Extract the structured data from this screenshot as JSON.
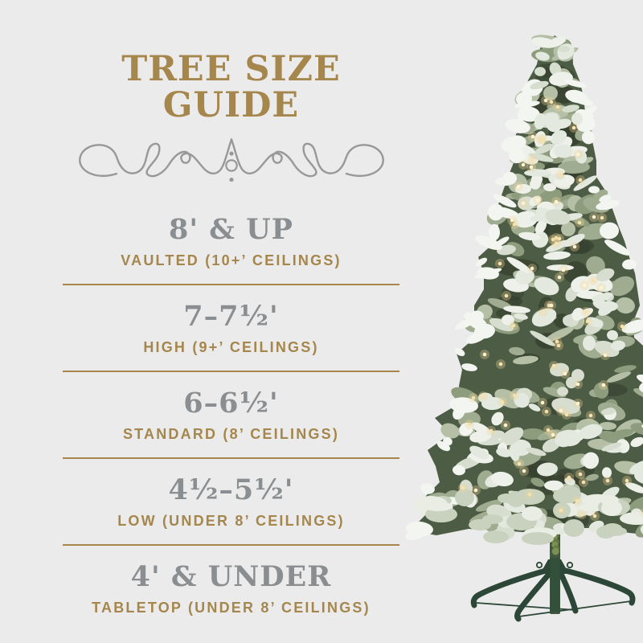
{
  "theme": {
    "background": "#ebebeb",
    "gold": "#a5864c",
    "size_gray": "#8b8e90",
    "flourish_gray": "#98989a",
    "stand_green": "#2c4737",
    "trunk_green": "#41573f",
    "light_warm": "#f1d79b"
  },
  "guide": {
    "title": "TREE SIZE GUIDE",
    "entries": [
      {
        "size": "8' & UP",
        "label": "VAULTED (10+’ CEILINGS)"
      },
      {
        "size": "7–7½'",
        "label": "HIGH (9+’ CEILINGS)"
      },
      {
        "size": "6–6½'",
        "label": "STANDARD (8’ CEILINGS)"
      },
      {
        "size": "4½–5½'",
        "label": "LOW (UNDER 8’ CEILINGS)"
      },
      {
        "size": "4' & UNDER",
        "label": "TABLETOP (UNDER 8’ CEILINGS)"
      }
    ]
  },
  "illustration": {
    "name": "flocked-pre-lit-christmas-tree",
    "stand": "green-metal-folding-stand"
  }
}
